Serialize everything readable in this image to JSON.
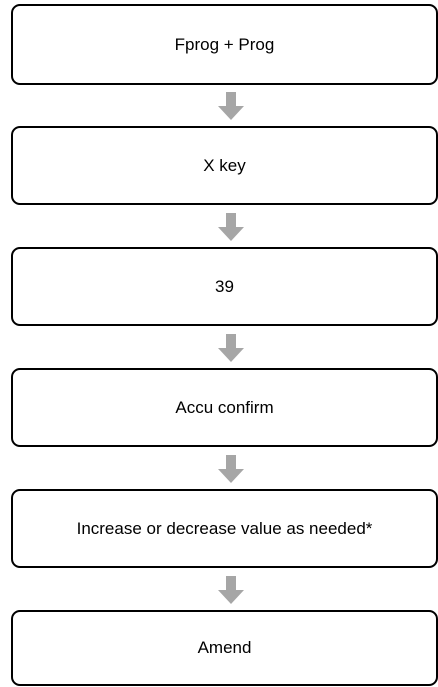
{
  "steps": [
    {
      "label": "Fprog + Prog"
    },
    {
      "label": "X key"
    },
    {
      "label": "39"
    },
    {
      "label": "Accu confirm"
    },
    {
      "label": "Increase or decrease value as needed*"
    },
    {
      "label": "Amend"
    }
  ],
  "colors": {
    "box_border": "#000000",
    "box_fill": "#ffffff",
    "arrow": "#a6a6a6",
    "text": "#000000"
  },
  "icons": {
    "connector": "down-arrow-icon"
  }
}
